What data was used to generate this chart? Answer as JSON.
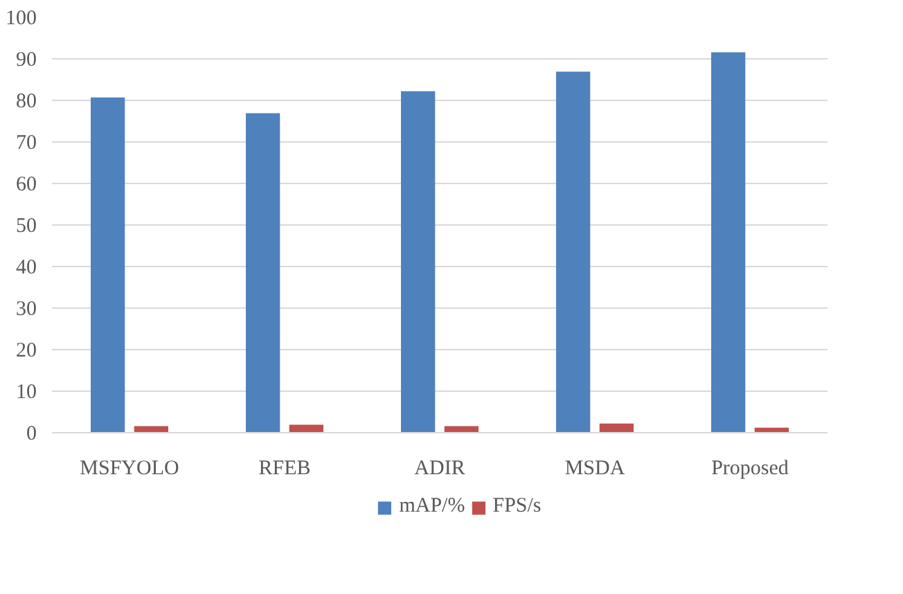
{
  "chart_data": {
    "type": "bar",
    "categories": [
      "MSFYOLO",
      "RFEB",
      "ADIR",
      "MSDA",
      "Proposed"
    ],
    "series": [
      {
        "name": "mAP/%",
        "color": "#4f81bd",
        "values": [
          80.7,
          76.9,
          82.2,
          86.9,
          91.6
        ]
      },
      {
        "name": "FPS/s",
        "color": "#c0504d",
        "values": [
          1.6,
          1.9,
          1.6,
          2.2,
          1.2
        ]
      }
    ],
    "ylim": [
      0,
      100
    ],
    "yticks": [
      0,
      10,
      20,
      30,
      40,
      50,
      60,
      70,
      80,
      90,
      100
    ],
    "grid": "y",
    "legend": "bottom"
  }
}
